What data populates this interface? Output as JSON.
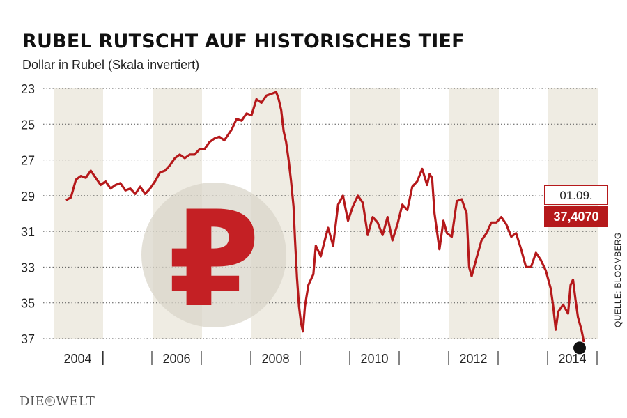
{
  "header": {
    "title": "RUBEL RUTSCHT AUF HISTORISCHES TIEF",
    "subtitle": "Dollar in Rubel (Skala invertiert)"
  },
  "source": "QUELLE: BLOOMBERG",
  "logo": {
    "left": "DIE",
    "right": "WELT"
  },
  "callout": {
    "date": "01.09.",
    "value": "37,4070"
  },
  "colors": {
    "line": "#b5191b",
    "band": "#efece3",
    "currency_circle": "#d9d5c9",
    "currency_symbol": "#c42024"
  },
  "currency_symbol_name": "ruble-sign",
  "chart_data": {
    "type": "line",
    "title": "RUBEL RUTSCHT AUF HISTORISCHES TIEF",
    "ylabel": "Dollar in Rubel (Skala invertiert)",
    "xlabel": "",
    "x_range": [
      2004.0,
      2014.75
    ],
    "ylim": [
      23,
      37
    ],
    "y_inverted": true,
    "y_ticks": [
      23,
      25,
      27,
      29,
      31,
      33,
      35,
      37
    ],
    "x_tick_labels": [
      "2004",
      "2006",
      "2008",
      "2010",
      "2012",
      "2014"
    ],
    "x_tick_years": [
      2004,
      2006,
      2008,
      2010,
      2012,
      2014
    ],
    "grid": "horizontal dotted",
    "points": [
      [
        2004.25,
        29.25
      ],
      [
        2004.35,
        29.1
      ],
      [
        2004.45,
        28.1
      ],
      [
        2004.55,
        27.9
      ],
      [
        2004.65,
        28.0
      ],
      [
        2004.75,
        27.6
      ],
      [
        2004.85,
        28.0
      ],
      [
        2004.95,
        28.4
      ],
      [
        2005.05,
        28.2
      ],
      [
        2005.15,
        28.6
      ],
      [
        2005.25,
        28.4
      ],
      [
        2005.35,
        28.3
      ],
      [
        2005.45,
        28.7
      ],
      [
        2005.55,
        28.6
      ],
      [
        2005.65,
        28.9
      ],
      [
        2005.75,
        28.5
      ],
      [
        2005.85,
        28.9
      ],
      [
        2005.95,
        28.6
      ],
      [
        2006.05,
        28.2
      ],
      [
        2006.15,
        27.7
      ],
      [
        2006.25,
        27.6
      ],
      [
        2006.35,
        27.3
      ],
      [
        2006.45,
        26.9
      ],
      [
        2006.55,
        26.7
      ],
      [
        2006.65,
        26.9
      ],
      [
        2006.75,
        26.7
      ],
      [
        2006.85,
        26.7
      ],
      [
        2006.95,
        26.4
      ],
      [
        2007.05,
        26.4
      ],
      [
        2007.15,
        26.0
      ],
      [
        2007.25,
        25.8
      ],
      [
        2007.35,
        25.7
      ],
      [
        2007.45,
        25.9
      ],
      [
        2007.55,
        25.5
      ],
      [
        2007.6,
        25.3
      ],
      [
        2007.7,
        24.7
      ],
      [
        2007.8,
        24.8
      ],
      [
        2007.9,
        24.4
      ],
      [
        2008.0,
        24.5
      ],
      [
        2008.1,
        23.6
      ],
      [
        2008.2,
        23.8
      ],
      [
        2008.3,
        23.4
      ],
      [
        2008.4,
        23.3
      ],
      [
        2008.5,
        23.2
      ],
      [
        2008.55,
        23.6
      ],
      [
        2008.6,
        24.2
      ],
      [
        2008.65,
        25.4
      ],
      [
        2008.7,
        26.0
      ],
      [
        2008.75,
        27.0
      ],
      [
        2008.8,
        28.2
      ],
      [
        2008.85,
        29.6
      ],
      [
        2008.88,
        31.5
      ],
      [
        2008.92,
        33.6
      ],
      [
        2008.96,
        35.2
      ],
      [
        2009.0,
        36.1
      ],
      [
        2009.04,
        36.6
      ],
      [
        2009.08,
        35.2
      ],
      [
        2009.15,
        34.0
      ],
      [
        2009.25,
        33.4
      ],
      [
        2009.3,
        31.8
      ],
      [
        2009.4,
        32.4
      ],
      [
        2009.5,
        31.3
      ],
      [
        2009.55,
        30.8
      ],
      [
        2009.65,
        31.8
      ],
      [
        2009.75,
        29.5
      ],
      [
        2009.85,
        29.0
      ],
      [
        2009.95,
        30.4
      ],
      [
        2010.05,
        29.6
      ],
      [
        2010.15,
        29.0
      ],
      [
        2010.25,
        29.4
      ],
      [
        2010.35,
        31.2
      ],
      [
        2010.45,
        30.2
      ],
      [
        2010.55,
        30.5
      ],
      [
        2010.65,
        31.2
      ],
      [
        2010.75,
        30.2
      ],
      [
        2010.85,
        31.5
      ],
      [
        2010.95,
        30.6
      ],
      [
        2011.05,
        29.5
      ],
      [
        2011.15,
        29.8
      ],
      [
        2011.25,
        28.5
      ],
      [
        2011.35,
        28.2
      ],
      [
        2011.45,
        27.5
      ],
      [
        2011.55,
        28.4
      ],
      [
        2011.6,
        27.8
      ],
      [
        2011.65,
        28.0
      ],
      [
        2011.7,
        30.0
      ],
      [
        2011.8,
        32.0
      ],
      [
        2011.88,
        30.4
      ],
      [
        2011.95,
        31.1
      ],
      [
        2012.05,
        31.3
      ],
      [
        2012.15,
        29.3
      ],
      [
        2012.25,
        29.2
      ],
      [
        2012.35,
        30.0
      ],
      [
        2012.4,
        33.0
      ],
      [
        2012.45,
        33.5
      ],
      [
        2012.55,
        32.5
      ],
      [
        2012.65,
        31.5
      ],
      [
        2012.75,
        31.1
      ],
      [
        2012.85,
        30.5
      ],
      [
        2012.95,
        30.5
      ],
      [
        2013.05,
        30.2
      ],
      [
        2013.15,
        30.6
      ],
      [
        2013.25,
        31.3
      ],
      [
        2013.35,
        31.1
      ],
      [
        2013.45,
        32.0
      ],
      [
        2013.55,
        33.0
      ],
      [
        2013.65,
        33.0
      ],
      [
        2013.75,
        32.2
      ],
      [
        2013.85,
        32.6
      ],
      [
        2013.95,
        33.2
      ],
      [
        2014.05,
        34.2
      ],
      [
        2014.1,
        35.2
      ],
      [
        2014.15,
        36.5
      ],
      [
        2014.2,
        35.5
      ],
      [
        2014.3,
        35.1
      ],
      [
        2014.4,
        35.6
      ],
      [
        2014.45,
        34.0
      ],
      [
        2014.5,
        33.7
      ],
      [
        2014.55,
        34.8
      ],
      [
        2014.6,
        35.8
      ],
      [
        2014.67,
        36.5
      ],
      [
        2014.72,
        37.2
      ]
    ],
    "end_point": [
      2014.72,
      37.407
    ]
  }
}
